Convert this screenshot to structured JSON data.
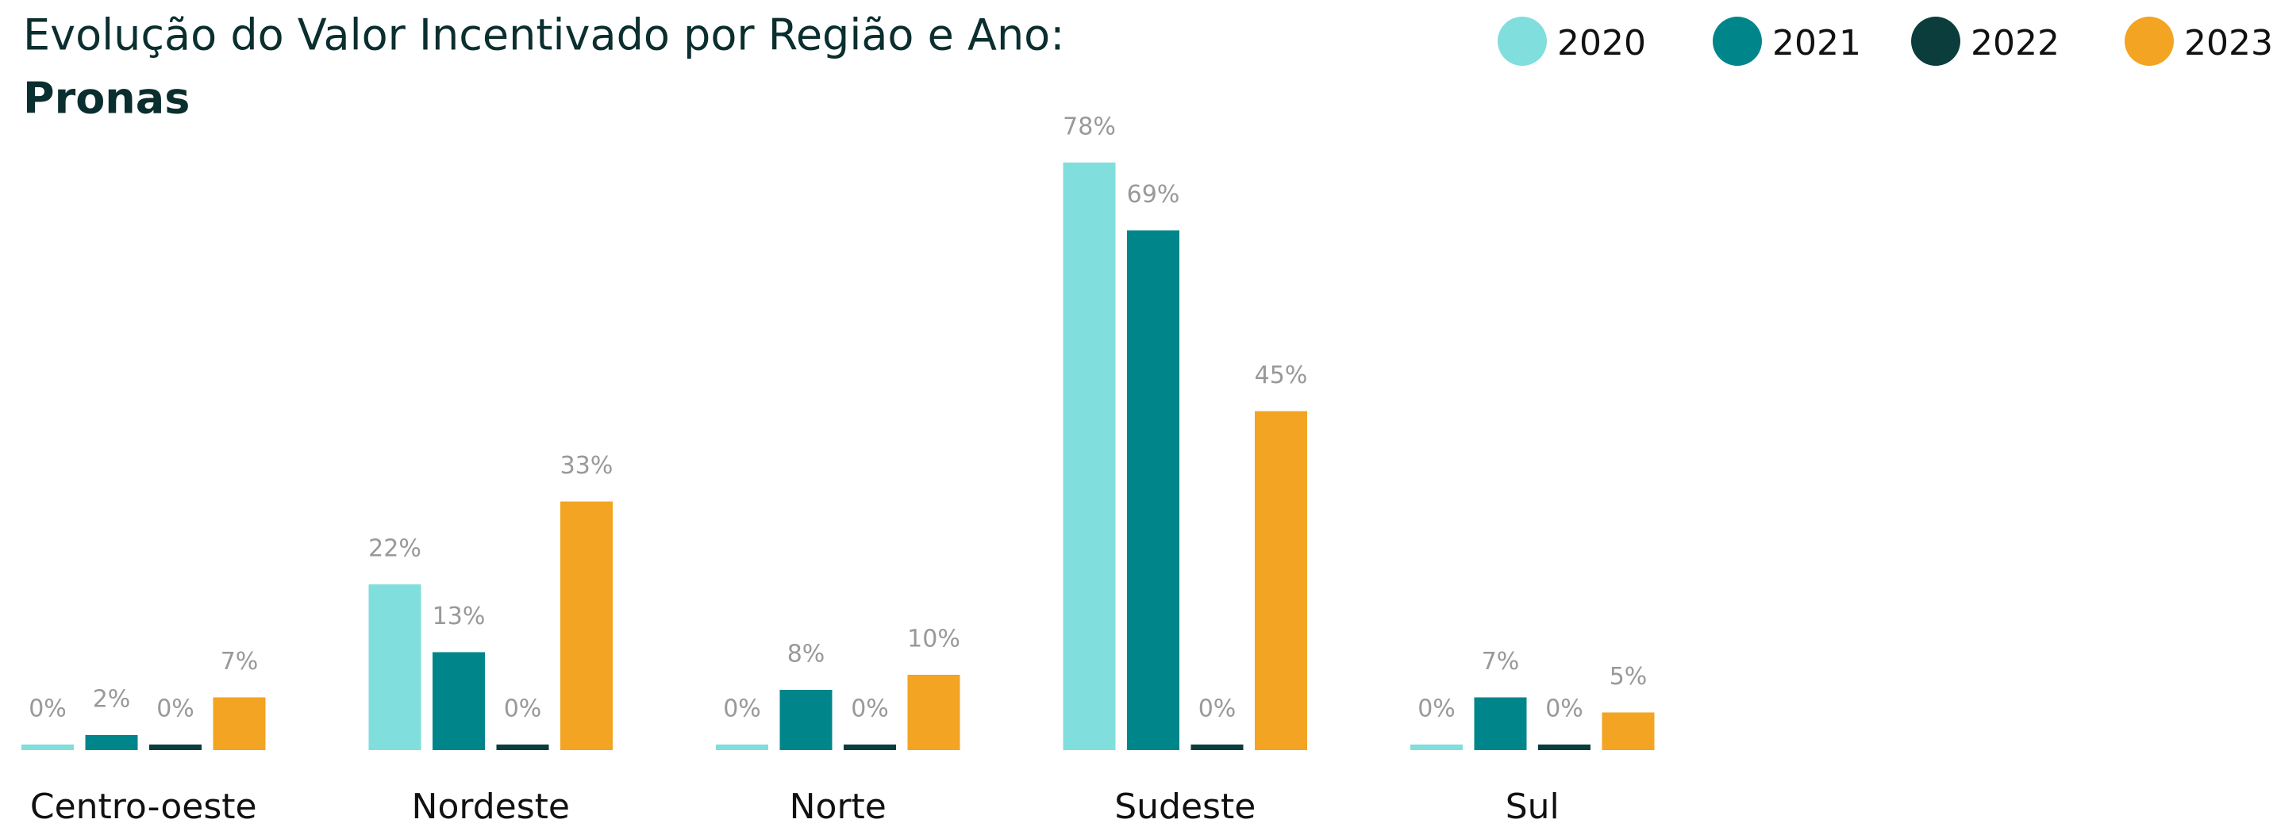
{
  "chart_data": {
    "type": "bar",
    "title": "Evolução do Valor Incentivado por Região e Ano:",
    "subtitle": "Pronas",
    "categories": [
      "Centro-oeste",
      "Nordeste",
      "Norte",
      "Sudeste",
      "Sul"
    ],
    "series": [
      {
        "name": "2020",
        "color": "#80dedc",
        "values": [
          0,
          22,
          0,
          78,
          0
        ],
        "value_labels": [
          "0%",
          "22%",
          "0%",
          "78%",
          "0%"
        ]
      },
      {
        "name": "2021",
        "color": "#00868a",
        "values": [
          2,
          13,
          8,
          69,
          7
        ],
        "value_labels": [
          "2%",
          "13%",
          "8%",
          "69%",
          "7%"
        ]
      },
      {
        "name": "2022",
        "color": "#0b3d3d",
        "values": [
          0,
          0,
          0,
          0,
          0
        ],
        "value_labels": [
          "0%",
          "0%",
          "0%",
          "0%",
          "0%"
        ]
      },
      {
        "name": "2023",
        "color": "#f2a422",
        "values": [
          7,
          33,
          10,
          45,
          5
        ],
        "value_labels": [
          "7%",
          "33%",
          "10%",
          "45%",
          "5%"
        ]
      }
    ],
    "legend": "top-right"
  }
}
